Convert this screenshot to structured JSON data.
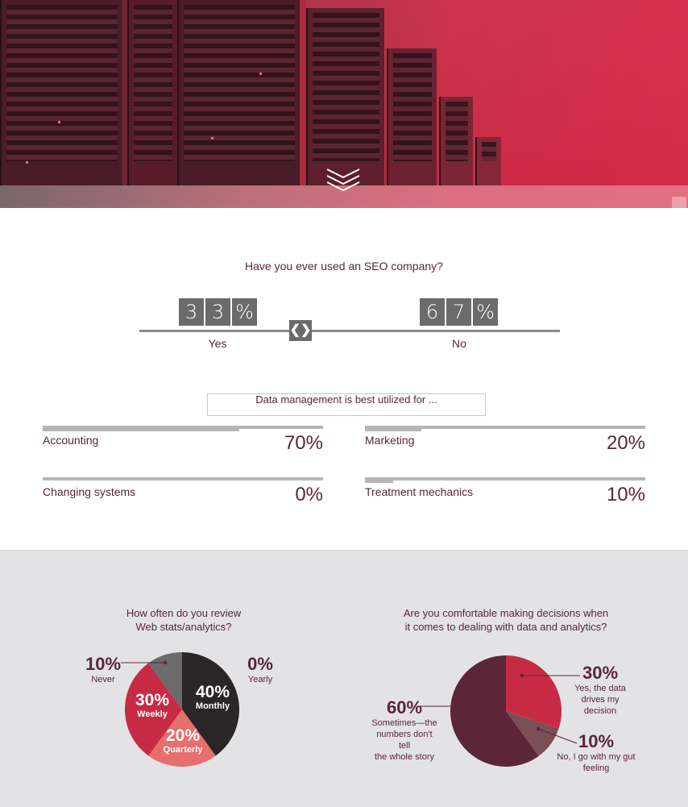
{
  "question1": {
    "title": "Have you ever used an SEO company?",
    "yes": {
      "digits": [
        "3",
        "3",
        "%"
      ],
      "label": "Yes",
      "value": 33
    },
    "no": {
      "digits": [
        "6",
        "7",
        "%"
      ],
      "label": "No",
      "value": 67
    },
    "handle_glyph": "❮❯"
  },
  "question2": {
    "title": "Data management is best utilized for ...",
    "items": [
      {
        "label": "Accounting",
        "value": 70,
        "display": "70%"
      },
      {
        "label": "Marketing",
        "value": 20,
        "display": "20%"
      },
      {
        "label": "Changing systems",
        "value": 0,
        "display": "0%"
      },
      {
        "label": "Treatment mechanics",
        "value": 10,
        "display": "10%"
      }
    ]
  },
  "chart_data": [
    {
      "type": "pie",
      "title": "How often do you review Web stats/analytics?",
      "categories": [
        "Monthly",
        "Quarterly",
        "Weekly",
        "Never",
        "Yearly"
      ],
      "values": [
        40,
        20,
        30,
        10,
        0
      ],
      "labels": [
        "40%",
        "20%",
        "30%",
        "10%",
        "0%"
      ],
      "colors": [
        "#2a2526",
        "#e66e6c",
        "#c72b43",
        "#6b6b6b",
        "#8a8a8a"
      ]
    },
    {
      "type": "pie",
      "title": "Are you comfortable making decisions when it comes to dealing with data and analytics?",
      "categories": [
        "Yes, the data drives my decision",
        "No, I go with my gut feeling",
        "Sometimes—the numbers don't tell the whole story"
      ],
      "values": [
        30,
        10,
        60
      ],
      "labels": [
        "30%",
        "10%",
        "60%"
      ],
      "colors": [
        "#c72b43",
        "#7b4f56",
        "#5c2538"
      ]
    }
  ],
  "pie1_text": {
    "title_line1": "How often do you review",
    "title_line2": "Web stats/analytics?"
  },
  "pie2_text": {
    "title_line1": "Are you comfortable making decisions when",
    "title_line2": "it comes to dealing with data and analytics?",
    "yes_line1": "Yes, the data",
    "yes_line2": "drives my decision",
    "no_line1": "No, I go with my gut feeling",
    "some_line1": "Sometimes—the",
    "some_line2": "numbers don't tell",
    "some_line3": "the whole story"
  }
}
